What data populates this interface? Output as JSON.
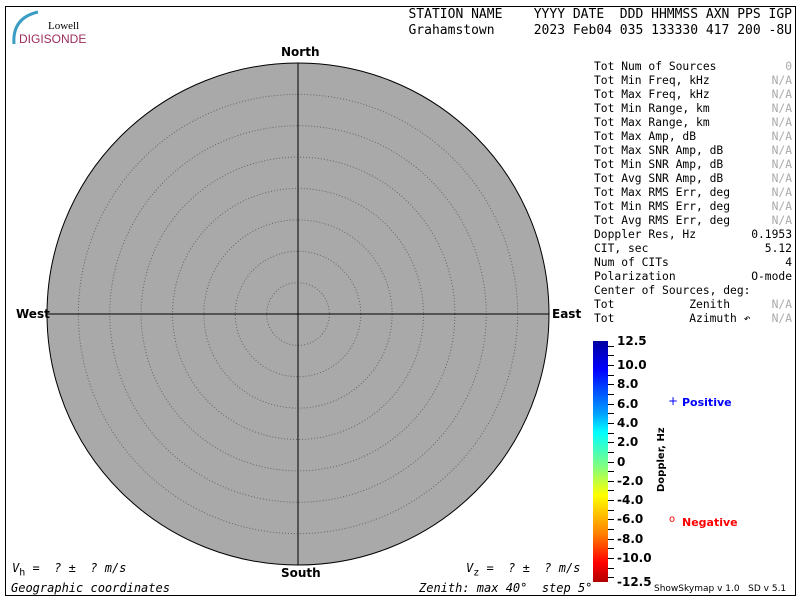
{
  "logo": {
    "line1": "Lowell",
    "line2": "DIGISONDE"
  },
  "header": {
    "labels": "STATION NAME    YYYY DATE  DDD HHMMSS AXN PPS IGP",
    "values": "Grahamstown     2023 Feb04 035 133330 417 200 -8U"
  },
  "skymap": {
    "north": "North",
    "south": "South",
    "east": "East",
    "west": "West",
    "zenith_max_deg": 40,
    "zenith_step_deg": 5,
    "background": "#a9a9a9"
  },
  "stats": [
    {
      "label": "Tot Num of Sources",
      "value": "0",
      "na": true
    },
    {
      "label": "Tot Min Freq, kHz",
      "value": "N/A",
      "na": true
    },
    {
      "label": "Tot Max Freq, kHz",
      "value": "N/A",
      "na": true
    },
    {
      "label": "Tot Min Range, km",
      "value": "N/A",
      "na": true
    },
    {
      "label": "Tot Max Range, km",
      "value": "N/A",
      "na": true
    },
    {
      "label": "Tot Max Amp, dB",
      "value": "N/A",
      "na": true
    },
    {
      "label": "Tot Max SNR Amp, dB",
      "value": "N/A",
      "na": true
    },
    {
      "label": "Tot Min SNR Amp, dB",
      "value": "N/A",
      "na": true
    },
    {
      "label": "Tot Avg SNR Amp, dB",
      "value": "N/A",
      "na": true
    },
    {
      "label": "Tot Max RMS Err, deg",
      "value": "N/A",
      "na": true
    },
    {
      "label": "Tot Min RMS Err, deg",
      "value": "N/A",
      "na": true
    },
    {
      "label": "Tot Avg RMS Err, deg",
      "value": "N/A",
      "na": true
    },
    {
      "label": "Doppler Res, Hz",
      "value": "0.1953",
      "na": false
    },
    {
      "label": "CIT, sec",
      "value": "5.12",
      "na": false
    },
    {
      "label": "Num of CITs",
      "value": "4",
      "na": false
    },
    {
      "label": "Polarization",
      "value": "O-mode",
      "na": false
    },
    {
      "label": "Center of Sources, deg:",
      "value": "",
      "na": false
    },
    {
      "label": "Tot           Zenith",
      "value": "N/A",
      "na": true
    },
    {
      "label": "Tot           Azimuth ↶",
      "value": "N/A",
      "na": true
    }
  ],
  "colorbar": {
    "title": "Doppler, Hz",
    "ticks": [
      "12.5",
      "10.0",
      "8.0",
      "6.0",
      "4.0",
      "2.0",
      "0",
      "-2.0",
      "-4.0",
      "-6.0",
      "-8.0",
      "-10.0",
      "-12.5"
    ],
    "tick_values": [
      12.5,
      10,
      8,
      6,
      4,
      2,
      0,
      -2,
      -4,
      -6,
      -8,
      -10,
      -12.5
    ]
  },
  "legend": {
    "positive_symbol": "+",
    "positive": "Positive",
    "positive_color": "#0000ff",
    "negative_symbol": "o",
    "negative": "Negative",
    "negative_color": "#ff0000"
  },
  "footer": {
    "vh": "V",
    "vh_sub": "h",
    "vh_rest": " =  ? ±  ? m/s",
    "vz": "V",
    "vz_sub": "z",
    "vz_rest": " =  ? ±  ? m/s",
    "coords": "Geographic coordinates",
    "zenith": "Zenith: max 40°  step 5°",
    "version": "ShowSkymap v 1.0   SD v 5.1"
  }
}
